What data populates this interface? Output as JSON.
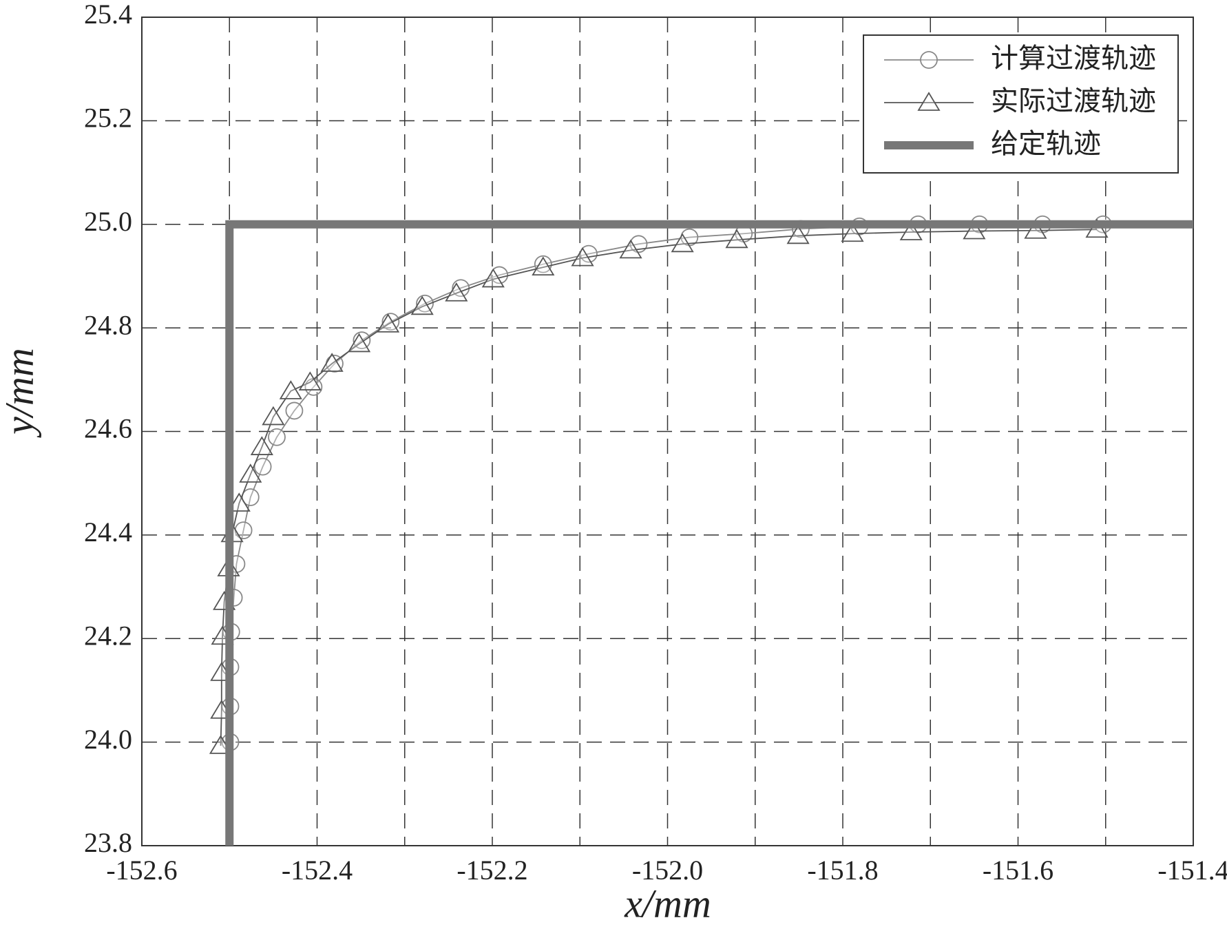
{
  "chart_data": {
    "type": "line",
    "xlabel": "x/mm",
    "ylabel": "y/mm",
    "xlim": [
      -152.6,
      -151.4
    ],
    "xticks": [
      -152.6,
      -152.4,
      -152.2,
      {
        "value": -152.0,
        "label": "-152.0"
      },
      -151.8,
      -151.6,
      -151.4
    ],
    "x_minor_ticks": [
      -152.5,
      -152.3,
      -152.1,
      -151.9,
      -151.7,
      -151.5
    ],
    "ylim": [
      23.8,
      25.4
    ],
    "yticks": [
      23.8,
      {
        "value": 24.0,
        "label": "24.0"
      },
      24.2,
      24.4,
      24.6,
      24.8,
      {
        "value": 25.0,
        "label": "25.0"
      },
      25.2,
      25.4
    ],
    "grid": true,
    "legend": "upper right",
    "series": [
      {
        "name": "计算过渡轨迹",
        "color": "#888888",
        "marker": "circle",
        "x": [
          -152.499,
          -152.499,
          -152.499,
          -152.498,
          -152.495,
          -152.492,
          -152.484,
          -152.476,
          -152.462,
          -152.446,
          -152.426,
          -152.404,
          -152.38,
          -152.349,
          -152.316,
          -152.277,
          -152.236,
          -152.192,
          -152.142,
          -152.09,
          -152.033,
          -151.975,
          -151.913,
          -151.848,
          -151.781,
          -151.714,
          -151.644,
          -151.572,
          -151.503
        ],
        "values": [
          24.0,
          24.069,
          24.145,
          24.213,
          24.279,
          24.344,
          24.409,
          24.473,
          24.532,
          24.589,
          24.64,
          24.686,
          24.731,
          24.776,
          24.812,
          24.847,
          24.877,
          24.902,
          24.923,
          24.943,
          24.962,
          24.975,
          24.982,
          24.991,
          24.996,
          25.0,
          25.0,
          25.0,
          25.0
        ]
      },
      {
        "name": "实际过渡轨迹",
        "color": "#555555",
        "marker": "triangle",
        "x": [
          -152.51,
          -152.509,
          -152.509,
          -152.508,
          -152.506,
          -152.501,
          -152.497,
          -152.489,
          -152.476,
          -152.463,
          -152.45,
          -152.43,
          -152.408,
          -152.383,
          -152.352,
          -152.319,
          -152.28,
          -152.241,
          -152.199,
          -152.142,
          -152.097,
          -152.042,
          -151.983,
          -151.921,
          -151.851,
          -151.789,
          -151.722,
          -151.65,
          -151.58,
          -151.51
        ],
        "values": [
          23.993,
          24.061,
          24.134,
          24.204,
          24.271,
          24.336,
          24.402,
          24.461,
          24.517,
          24.57,
          24.628,
          24.678,
          24.695,
          24.731,
          24.769,
          24.807,
          24.841,
          24.867,
          24.894,
          24.917,
          24.935,
          24.95,
          24.962,
          24.97,
          24.978,
          24.982,
          24.985,
          24.987,
          24.988,
          24.99
        ]
      },
      {
        "name": "给定轨迹",
        "color": "#777777",
        "marker": "none",
        "linewidth": 12,
        "x": [
          -152.5,
          -152.5,
          -151.4
        ],
        "values": [
          23.8,
          25.0,
          25.0
        ]
      }
    ]
  }
}
